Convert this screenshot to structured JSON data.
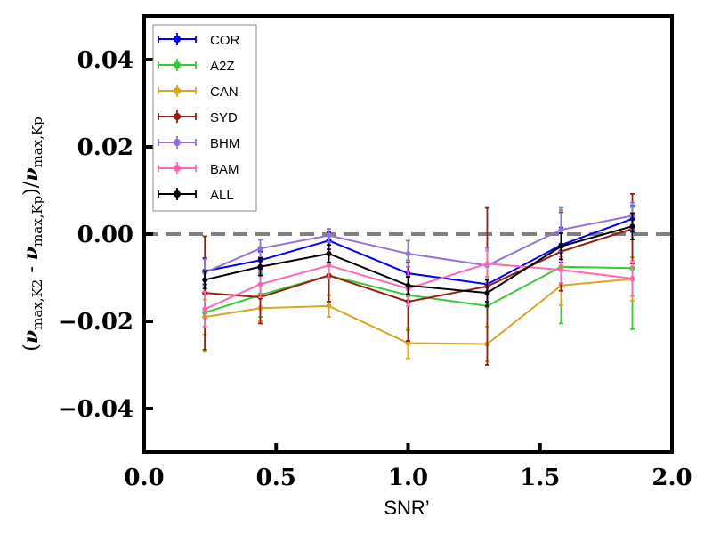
{
  "chart_data": {
    "type": "line",
    "title": "",
    "xlabel": "SNR’",
    "ylabel": "(ν_max,K2 - ν_max,Kp)/ν_max,Kp",
    "xlim": [
      0.0,
      2.0
    ],
    "ylim": [
      -0.05,
      0.05
    ],
    "xticks": [
      0.0,
      0.5,
      1.0,
      1.5,
      2.0
    ],
    "xtick_labels": [
      "0.0",
      "0.5",
      "1.0",
      "1.5",
      "2.0"
    ],
    "yticks": [
      0.04,
      0.02,
      0.0,
      -0.02,
      -0.04
    ],
    "ytick_labels": [
      "0.04",
      "0.02",
      "0.00",
      "−0.02",
      "−0.04"
    ],
    "reference_line": 0.0,
    "legend_position": "top-left",
    "x": [
      0.23,
      0.44,
      0.7,
      1.0,
      1.3,
      1.58,
      1.85
    ],
    "series": [
      {
        "name": "COR",
        "color": "#0000ff",
        "values": [
          -0.0085,
          -0.006,
          -0.0015,
          -0.009,
          -0.0115,
          -0.0025,
          0.0035
        ],
        "errors": [
          0.003,
          0.002,
          0.002,
          0.003,
          0.004,
          0.004,
          0.003
        ]
      },
      {
        "name": "A2Z",
        "color": "#33cc33",
        "values": [
          -0.018,
          -0.014,
          -0.0095,
          -0.014,
          -0.0165,
          -0.0075,
          -0.0078
        ],
        "errors": [
          0.009,
          0.005,
          0.006,
          0.008,
          0.009,
          0.013,
          0.014
        ]
      },
      {
        "name": "CAN",
        "color": "#daa520",
        "values": [
          -0.019,
          -0.017,
          -0.0165,
          -0.025,
          -0.0252,
          -0.0118,
          -0.0103
        ],
        "errors": [
          0.004,
          0.003,
          0.0025,
          0.0035,
          0.004,
          0.0045,
          0.005
        ]
      },
      {
        "name": "SYD",
        "color": "#9b1c0c",
        "values": [
          -0.0135,
          -0.0145,
          -0.0095,
          -0.0155,
          -0.012,
          -0.004,
          0.0012
        ],
        "errors": [
          0.013,
          0.006,
          0.006,
          0.009,
          0.018,
          0.009,
          0.008
        ]
      },
      {
        "name": "BHM",
        "color": "#9370db",
        "values": [
          -0.0088,
          -0.0033,
          -0.0003,
          -0.0045,
          -0.0072,
          0.001,
          0.0042
        ],
        "errors": [
          0.003,
          0.002,
          0.0015,
          0.003,
          0.004,
          0.005,
          0.003
        ]
      },
      {
        "name": "BAM",
        "color": "#ff69b4",
        "values": [
          -0.0172,
          -0.0115,
          -0.0072,
          -0.0125,
          -0.0068,
          -0.0082,
          -0.0102
        ],
        "errors": [
          0.004,
          0.003,
          0.003,
          0.004,
          0.003,
          0.003,
          0.004
        ]
      },
      {
        "name": "ALL",
        "color": "#000000",
        "values": [
          -0.0105,
          -0.0075,
          -0.0045,
          -0.0118,
          -0.0135,
          -0.0028,
          0.0018
        ],
        "errors": [
          0.002,
          0.002,
          0.002,
          0.002,
          0.003,
          0.003,
          0.003
        ]
      }
    ]
  }
}
